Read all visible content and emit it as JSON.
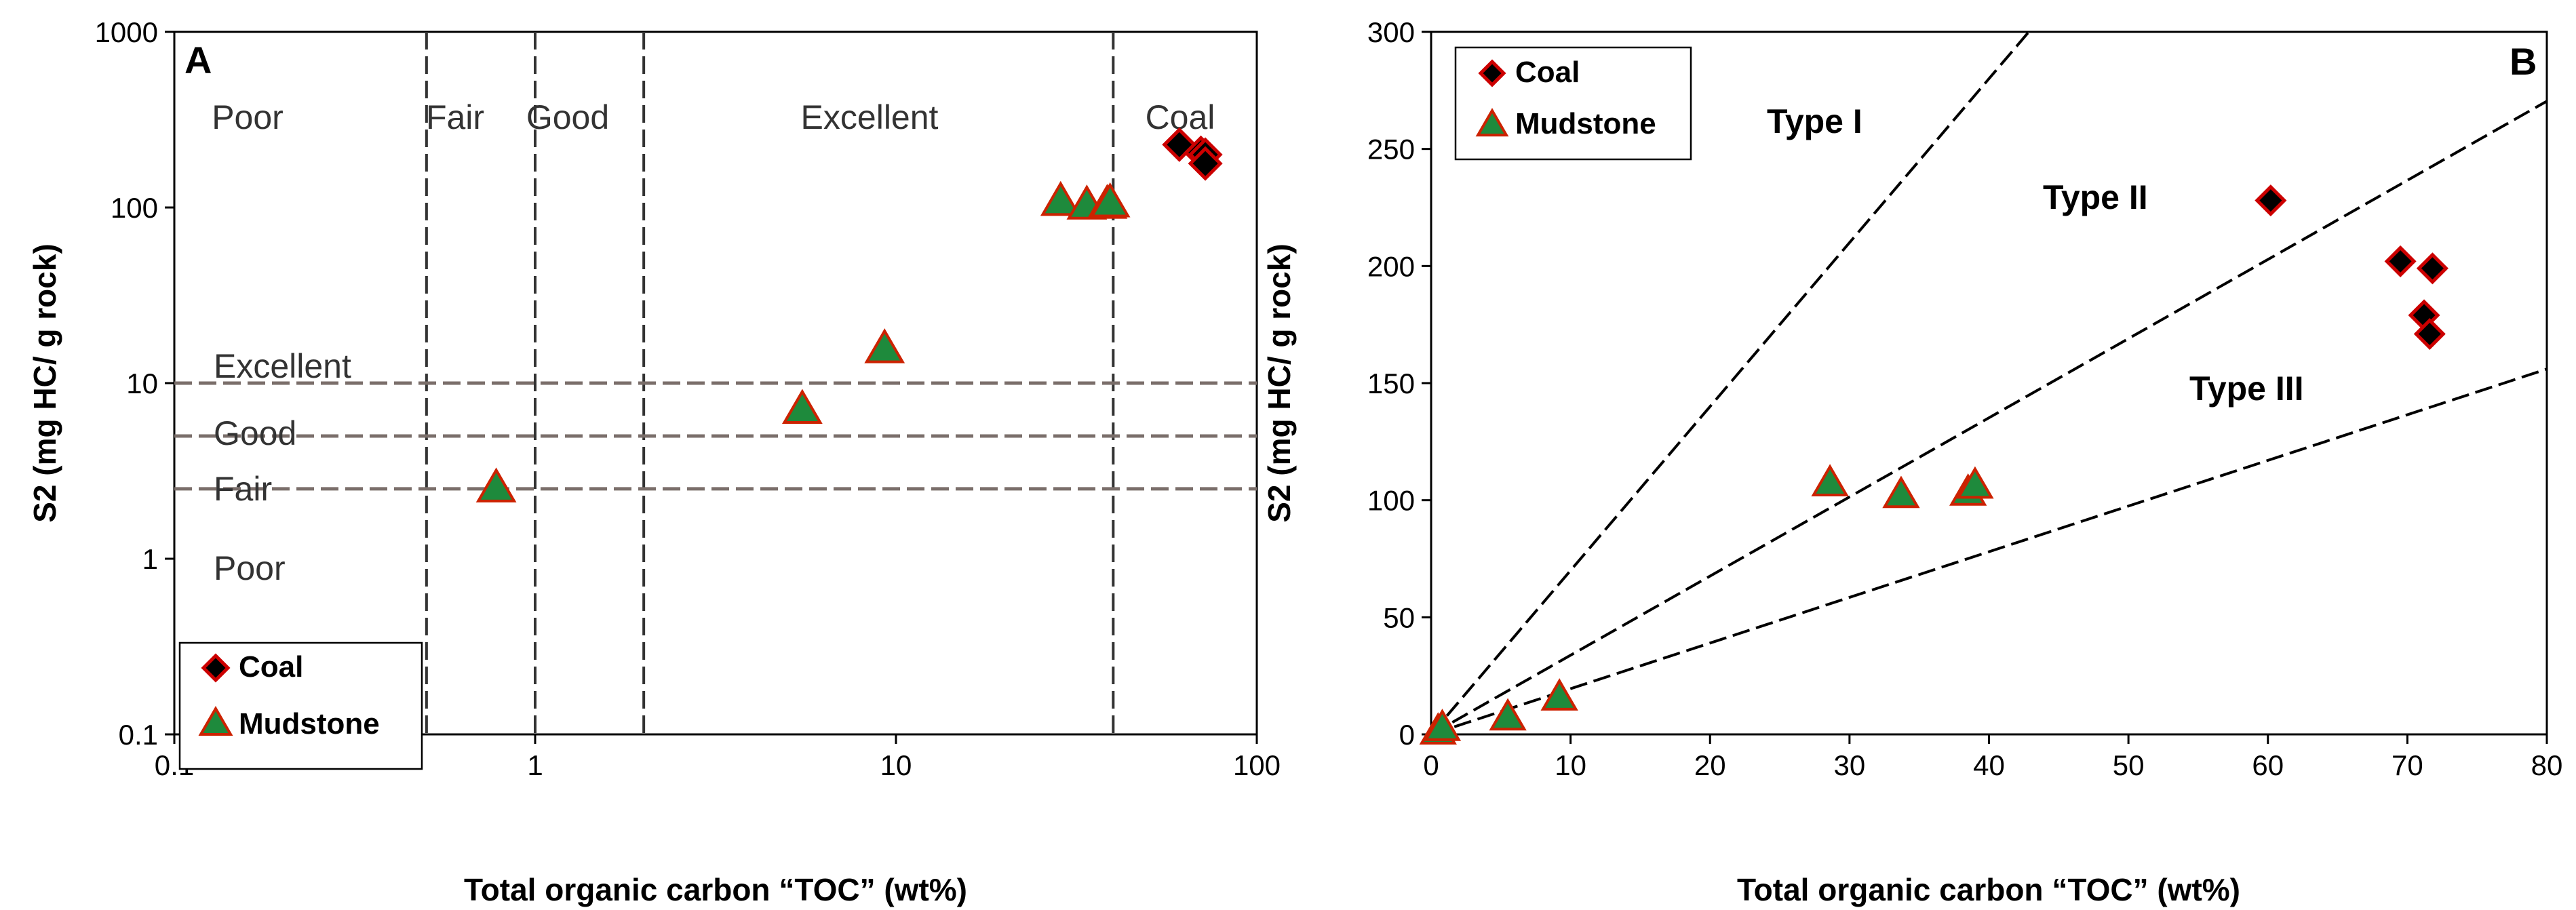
{
  "colors": {
    "coal_fill": "#000000",
    "coal_edge": "#cc0000",
    "mudstone_fill": "#1e8a3c",
    "mudstone_edge": "#cc2200",
    "class_line": "#7a6e6a",
    "kerogen_line": "#000000"
  },
  "chart_data": [
    {
      "panel": "A",
      "type": "scatter",
      "xscale": "log",
      "yscale": "log",
      "xlabel": "Total organic carbon “TOC” (wt%)",
      "ylabel": "S2 (mg HC/ g rock)",
      "xlim": [
        0.1,
        100
      ],
      "ylim": [
        0.1,
        1000
      ],
      "xticks": [
        "0.1",
        "1",
        "10",
        "100"
      ],
      "yticks": [
        "0.1",
        "1",
        "10",
        "100",
        "1000"
      ],
      "grid": false,
      "legend_position": "bottom-left",
      "series": [
        {
          "name": "Coal",
          "marker": "diamond",
          "x": [
            61,
            70,
            72,
            72
          ],
          "y": [
            228,
            205,
            200,
            178
          ]
        },
        {
          "name": "Mudstone",
          "marker": "triangle",
          "x": [
            0.78,
            5.5,
            9.3,
            28.6,
            33.8,
            38.5,
            39.2
          ],
          "y": [
            2.5,
            7.0,
            15.5,
            107,
            102,
            103,
            105
          ]
        }
      ],
      "vertical_dividers": [
        0.5,
        1,
        2,
        40
      ],
      "horizontal_dividers": [
        2.5,
        5,
        10
      ],
      "top_labels": [
        "Poor",
        "Fair",
        "Good",
        "Excellent",
        "Coal"
      ],
      "side_labels": [
        "Excellent",
        "Good",
        "Fair",
        "Poor"
      ]
    },
    {
      "panel": "B",
      "type": "scatter",
      "xlabel": "Total organic carbon “TOC” (wt%)",
      "ylabel": "S2 (mg HC/ g rock)",
      "xlim": [
        0,
        80
      ],
      "ylim": [
        0,
        300
      ],
      "xticks": [
        "0",
        "10",
        "20",
        "30",
        "40",
        "50",
        "60",
        "70",
        "80"
      ],
      "yticks": [
        "0",
        "50",
        "100",
        "150",
        "200",
        "250",
        "300"
      ],
      "grid": false,
      "legend_position": "top-left",
      "series": [
        {
          "name": "Coal",
          "marker": "diamond",
          "x": [
            60.2,
            69.5,
            71.8,
            71.2,
            71.6
          ],
          "y": [
            228,
            202,
            199,
            179,
            171
          ]
        },
        {
          "name": "Mudstone",
          "marker": "triangle",
          "x": [
            0.5,
            0.8,
            5.5,
            9.2,
            28.6,
            33.7,
            38.5,
            39.0
          ],
          "y": [
            1,
            2.5,
            7,
            15.5,
            107,
            102,
            103,
            106
          ]
        }
      ],
      "kerogen_lines": [
        {
          "label": "Type I",
          "slope": 7.0
        },
        {
          "label": "Type II",
          "slope": 3.38
        },
        {
          "label": "Type III",
          "slope": 1.95
        }
      ]
    }
  ]
}
